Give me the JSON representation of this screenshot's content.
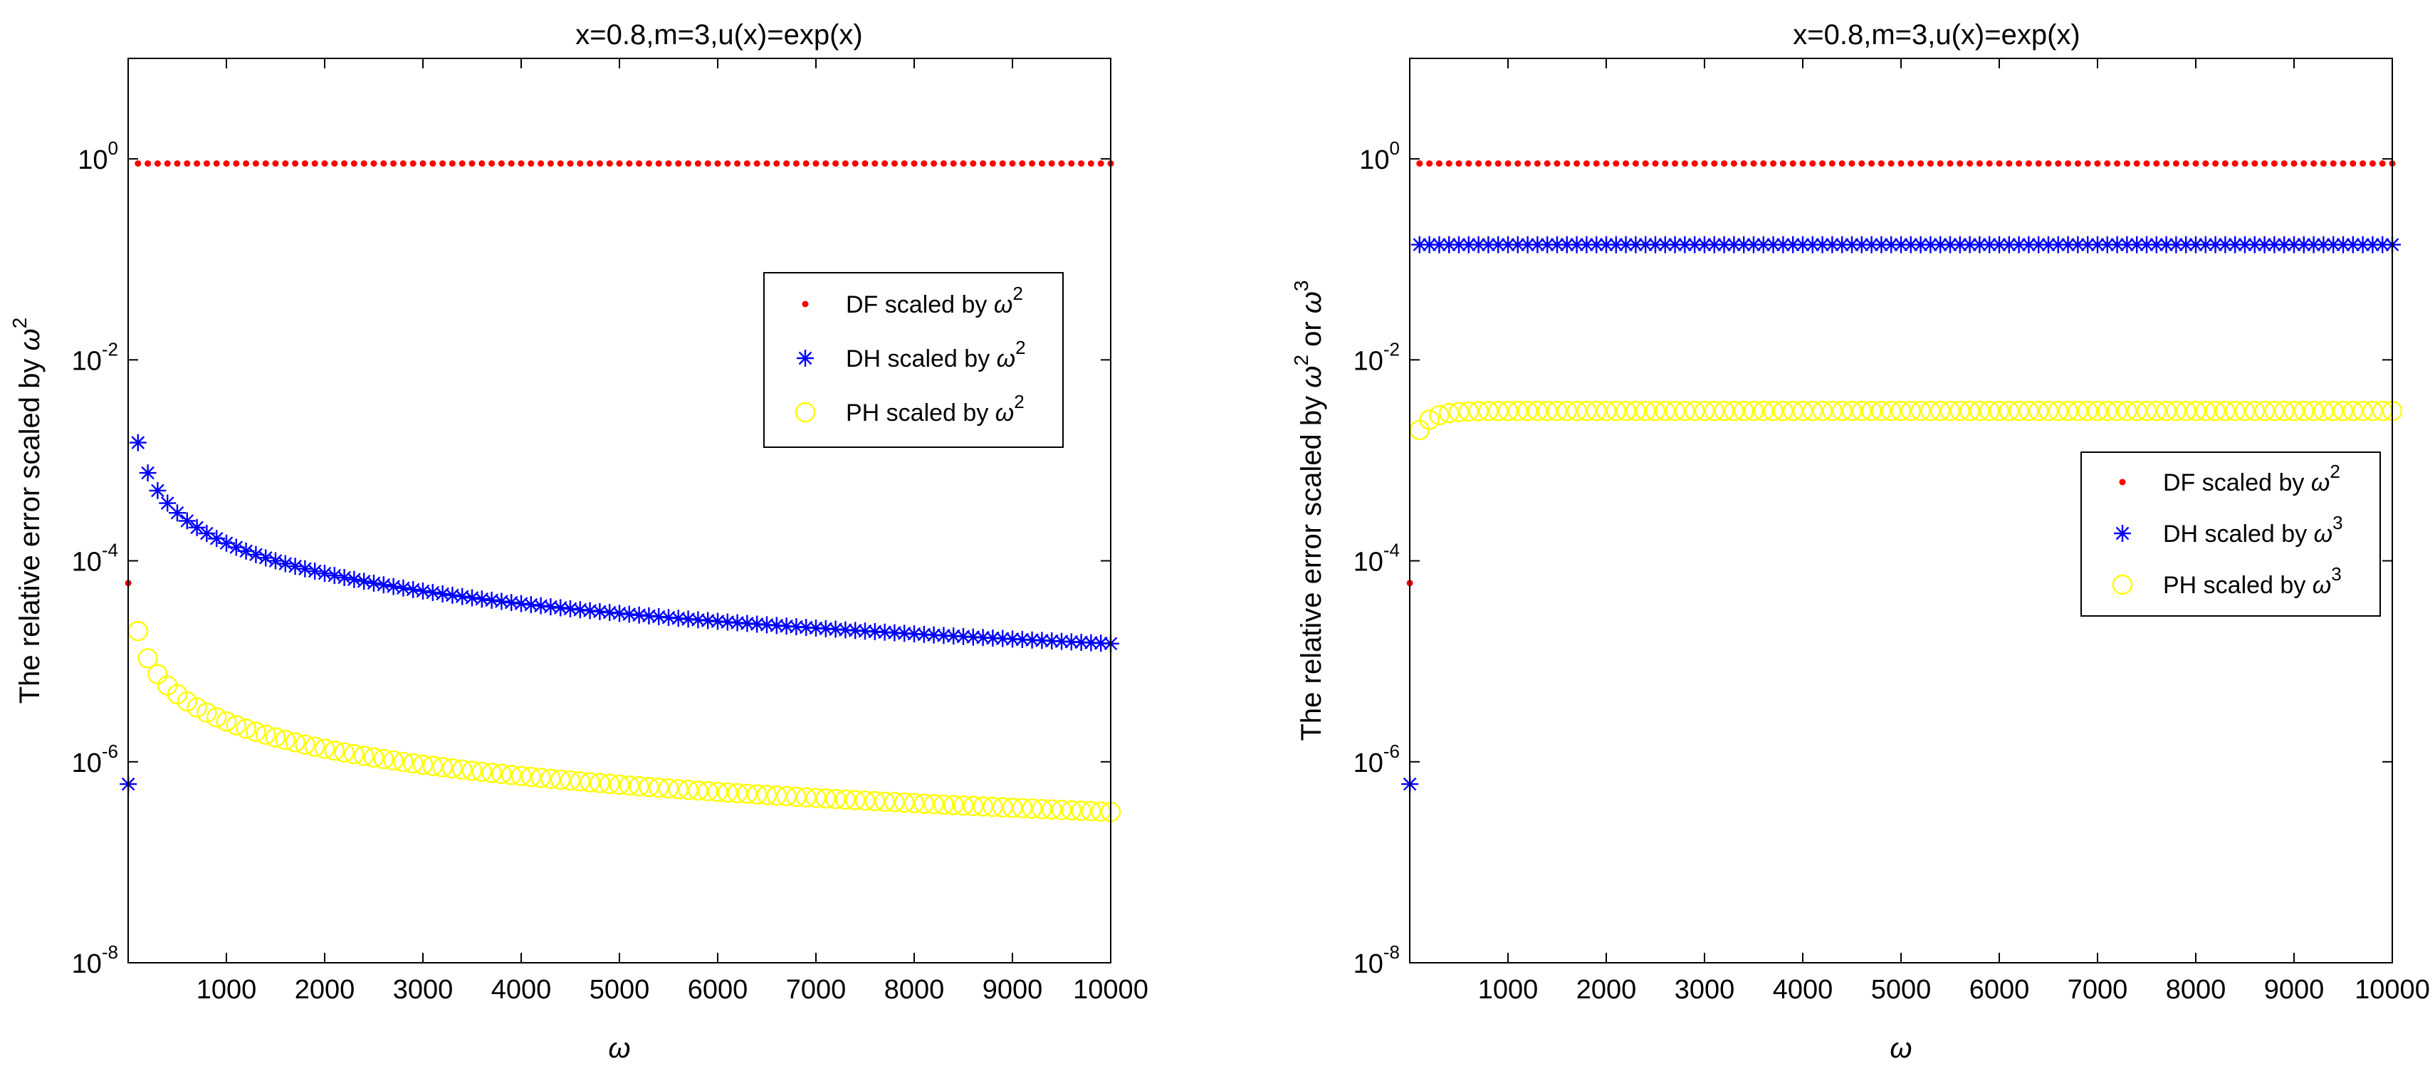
{
  "colors": {
    "df": "#ff0000",
    "dh": "#0000ff",
    "ph": "#ffff00",
    "axes": "#000000",
    "background": "#ffffff"
  },
  "chart_data": [
    {
      "type": "scatter",
      "yscale": "log",
      "title": "x=0.8,m=3,u(x)=exp(x)",
      "xlabel": "ω",
      "ylabel": {
        "prefix": "The relative error scaled by ",
        "parts": [
          {
            "base": "ω",
            "exp": "2"
          }
        ]
      },
      "xlim": [
        0,
        10000
      ],
      "ylim": [
        1e-08,
        10
      ],
      "xticks": [
        1000,
        2000,
        3000,
        4000,
        5000,
        6000,
        7000,
        8000,
        9000,
        10000
      ],
      "xtick_labels": [
        "1000",
        "2000",
        "3000",
        "4000",
        "5000",
        "6000",
        "7000",
        "8000",
        "9000",
        "10000"
      ],
      "yticks": [
        1e-08,
        1e-06,
        0.0001,
        0.01,
        1
      ],
      "ytick_labels": [
        {
          "base": "10",
          "exp": "-8"
        },
        {
          "base": "10",
          "exp": "-6"
        },
        {
          "base": "10",
          "exp": "-4"
        },
        {
          "base": "10",
          "exp": "-2"
        },
        {
          "base": "10",
          "exp": "0"
        }
      ],
      "legend_location": "upper-right-middle",
      "series": [
        {
          "key": "df",
          "label": "DF scaled by ",
          "label_base": "ω",
          "label_exp": "2",
          "marker": "dot",
          "first": {
            "x": 1,
            "y": 6e-05
          },
          "x_start": 100,
          "x_end": 10000,
          "x_step": 100,
          "model": "constant",
          "c": 0.9
        },
        {
          "key": "dh",
          "label": "DH scaled by ",
          "label_base": "ω",
          "label_exp": "2",
          "marker": "asterisk",
          "first": {
            "x": 1,
            "y": 6e-07
          },
          "x_start": 100,
          "x_end": 10000,
          "x_step": 100,
          "model": "power",
          "a": 0.0015,
          "x0": 100,
          "b": 1.0
        },
        {
          "key": "ph",
          "label": "PH scaled by ",
          "label_base": "ω",
          "label_exp": "2",
          "marker": "circle",
          "first": null,
          "x_start": 100,
          "x_end": 10000,
          "x_step": 100,
          "model": "power",
          "a": 2e-05,
          "x0": 100,
          "b": 0.9
        }
      ]
    },
    {
      "type": "scatter",
      "yscale": "log",
      "title": "x=0.8,m=3,u(x)=exp(x)",
      "xlabel": "ω",
      "ylabel": {
        "prefix": "The relative error scaled by ",
        "parts": [
          {
            "base": "ω",
            "exp": "2"
          },
          {
            "sep": " or "
          },
          {
            "base": "ω",
            "exp": "3"
          }
        ]
      },
      "xlim": [
        0,
        10000
      ],
      "ylim": [
        1e-08,
        10
      ],
      "xticks": [
        1000,
        2000,
        3000,
        4000,
        5000,
        6000,
        7000,
        8000,
        9000,
        10000
      ],
      "xtick_labels": [
        "1000",
        "2000",
        "3000",
        "4000",
        "5000",
        "6000",
        "7000",
        "8000",
        "9000",
        "10000"
      ],
      "yticks": [
        1e-08,
        1e-06,
        0.0001,
        0.01,
        1
      ],
      "ytick_labels": [
        {
          "base": "10",
          "exp": "-8"
        },
        {
          "base": "10",
          "exp": "-6"
        },
        {
          "base": "10",
          "exp": "-4"
        },
        {
          "base": "10",
          "exp": "-2"
        },
        {
          "base": "10",
          "exp": "0"
        }
      ],
      "legend_location": "right-middle",
      "series": [
        {
          "key": "df",
          "label": "DF scaled by ",
          "label_base": "ω",
          "label_exp": "2",
          "marker": "dot",
          "first": {
            "x": 1,
            "y": 6e-05
          },
          "x_start": 100,
          "x_end": 10000,
          "x_step": 100,
          "model": "constant",
          "c": 0.9
        },
        {
          "key": "dh",
          "label": "DH scaled by ",
          "label_base": "ω",
          "label_exp": "3",
          "marker": "asterisk",
          "first": {
            "x": 1,
            "y": 6e-07
          },
          "x_start": 100,
          "x_end": 10000,
          "x_step": 100,
          "model": "constant",
          "c": 0.14
        },
        {
          "key": "ph",
          "label": "PH scaled by ",
          "label_base": "ω",
          "label_exp": "3",
          "marker": "circle",
          "first": null,
          "x_start": 100,
          "x_end": 10000,
          "x_step": 100,
          "model": "saturating",
          "c": 0.0031,
          "y0": 0.002
        }
      ]
    }
  ]
}
